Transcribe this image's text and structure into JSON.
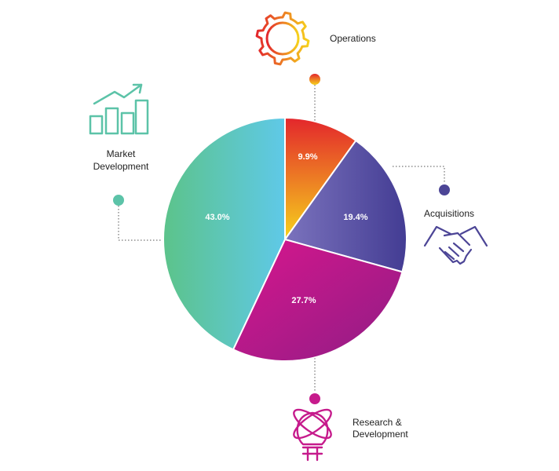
{
  "chart_data": {
    "type": "pie",
    "slices": [
      {
        "label": "Operations",
        "label_lines": [
          "Operations"
        ],
        "value": 9.9,
        "value_label": "9.9%",
        "colors": [
          "#e3262c",
          "#f6d21c"
        ],
        "icon": "gear-icon"
      },
      {
        "label": "Acquisitions",
        "label_lines": [
          "Acquisitions"
        ],
        "value": 19.4,
        "value_label": "19.4%",
        "colors": [
          "#7b73bd",
          "#433c93"
        ],
        "icon": "handshake-icon"
      },
      {
        "label": "Research & Development",
        "label_lines": [
          "Research &",
          "Development"
        ],
        "value": 27.7,
        "value_label": "27.7%",
        "colors": [
          "#d8168d",
          "#8f1d85"
        ],
        "icon": "lightbulb-atom-icon"
      },
      {
        "label": "Market Development",
        "label_lines": [
          "Market",
          "Development"
        ],
        "value": 43.0,
        "value_label": "43.0%",
        "colors": [
          "#5fc9e8",
          "#5cc38a"
        ],
        "icon": "growth-chart-icon"
      }
    ],
    "start_angle_deg": 0,
    "direction": "clockwise"
  }
}
